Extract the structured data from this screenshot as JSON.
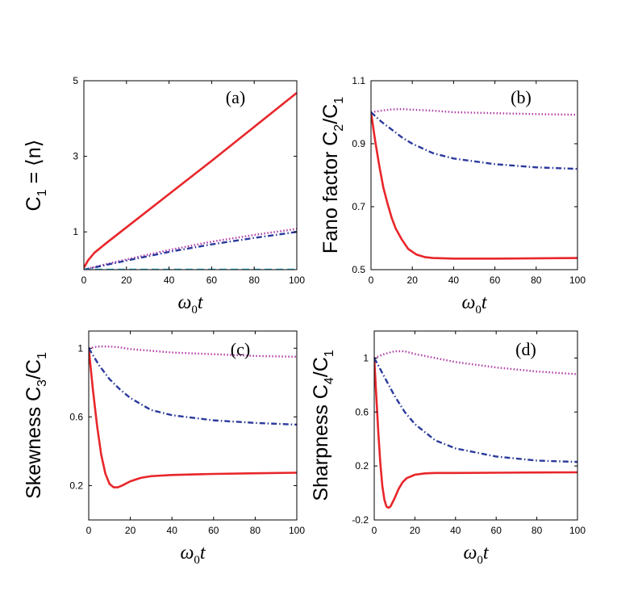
{
  "chart_data": [
    {
      "type": "line",
      "panel_label": "(a)",
      "ylabel_main": "C",
      "ylabel_sub": "1",
      "ylabel_rest": " = ⟨n⟩",
      "xlabel_main": "ω",
      "xlabel_sub": "0",
      "xlabel_rest": "t",
      "xlim": [
        0,
        100
      ],
      "ylim": [
        0,
        5
      ],
      "xticks": [
        "0",
        "20",
        "40",
        "60",
        "80",
        "100"
      ],
      "yticks": [
        "1",
        "3",
        "5"
      ],
      "series": [
        {
          "name": "solid-red",
          "color": "#e8262a",
          "style": "solid",
          "x": [
            0,
            2,
            5,
            10,
            20,
            40,
            60,
            80,
            100
          ],
          "y": [
            0.05,
            0.25,
            0.45,
            0.68,
            1.12,
            2.0,
            2.88,
            3.78,
            4.68
          ]
        },
        {
          "name": "dotted-magenta",
          "color": "#b03aa8",
          "style": "dotted",
          "x": [
            0,
            10,
            20,
            40,
            60,
            80,
            100
          ],
          "y": [
            0.0,
            0.14,
            0.27,
            0.52,
            0.74,
            0.92,
            1.08
          ]
        },
        {
          "name": "dashdot-blue",
          "color": "#2b3a9c",
          "style": "dashdot",
          "x": [
            0,
            10,
            20,
            40,
            60,
            80,
            100
          ],
          "y": [
            0.0,
            0.12,
            0.24,
            0.47,
            0.67,
            0.84,
            1.0
          ]
        },
        {
          "name": "dashed-cyan",
          "color": "#32b6d4",
          "style": "dashed",
          "x": [
            0,
            20,
            40,
            60,
            80,
            100
          ],
          "y": [
            0.0,
            0.0,
            0.0,
            0.0,
            0.0,
            0.0
          ]
        }
      ]
    },
    {
      "type": "line",
      "panel_label": "(b)",
      "ylabel_main": "Fano factor C",
      "ylabel_sub": "2",
      "ylabel_rest": "/C",
      "ylabel_sub2": "1",
      "xlabel_main": "ω",
      "xlabel_sub": "0",
      "xlabel_rest": "t",
      "xlim": [
        0,
        100
      ],
      "ylim": [
        0.5,
        1.1
      ],
      "xticks": [
        "0",
        "20",
        "40",
        "60",
        "80",
        "100"
      ],
      "yticks": [
        "0.5",
        "0.7",
        "0.9",
        "1.1"
      ],
      "series": [
        {
          "name": "solid-red",
          "color": "#e8262a",
          "style": "solid",
          "x": [
            0,
            2,
            4,
            6,
            8,
            10,
            12,
            15,
            18,
            22,
            26,
            30,
            40,
            60,
            80,
            100
          ],
          "y": [
            1.0,
            0.91,
            0.83,
            0.76,
            0.71,
            0.665,
            0.63,
            0.595,
            0.566,
            0.548,
            0.54,
            0.537,
            0.535,
            0.535,
            0.536,
            0.537
          ]
        },
        {
          "name": "dotted-magenta",
          "color": "#b03aa8",
          "style": "dotted",
          "x": [
            0,
            5,
            10,
            15,
            20,
            30,
            40,
            60,
            80,
            100
          ],
          "y": [
            1.0,
            1.005,
            1.009,
            1.01,
            1.008,
            1.005,
            1.0,
            0.997,
            0.994,
            0.992
          ]
        },
        {
          "name": "dashdot-blue",
          "color": "#2b3a9c",
          "style": "dashdot",
          "x": [
            0,
            5,
            10,
            15,
            20,
            30,
            40,
            60,
            80,
            100
          ],
          "y": [
            1.0,
            0.97,
            0.945,
            0.92,
            0.9,
            0.87,
            0.853,
            0.835,
            0.825,
            0.82
          ]
        }
      ]
    },
    {
      "type": "line",
      "panel_label": "(c)",
      "ylabel_main": "Skewness C",
      "ylabel_sub": "3",
      "ylabel_rest": "/C",
      "ylabel_sub2": "1",
      "xlabel_main": "ω",
      "xlabel_sub": "0",
      "xlabel_rest": "t",
      "xlim": [
        0,
        100
      ],
      "ylim": [
        0,
        1.1
      ],
      "xticks": [
        "0",
        "20",
        "40",
        "60",
        "80",
        "100"
      ],
      "yticks": [
        "0.2",
        "0.6",
        "1"
      ],
      "series": [
        {
          "name": "solid-red",
          "color": "#e8262a",
          "style": "solid",
          "x": [
            0,
            2,
            4,
            6,
            8,
            10,
            12,
            14,
            16,
            20,
            25,
            30,
            40,
            60,
            80,
            100
          ],
          "y": [
            1.0,
            0.76,
            0.55,
            0.38,
            0.27,
            0.21,
            0.19,
            0.19,
            0.2,
            0.225,
            0.245,
            0.255,
            0.262,
            0.268,
            0.272,
            0.275
          ]
        },
        {
          "name": "dotted-magenta",
          "color": "#b03aa8",
          "style": "dotted",
          "x": [
            0,
            5,
            10,
            15,
            20,
            30,
            40,
            60,
            80,
            100
          ],
          "y": [
            1.0,
            1.01,
            1.01,
            1.005,
            0.995,
            0.985,
            0.975,
            0.965,
            0.955,
            0.95
          ]
        },
        {
          "name": "dashdot-blue",
          "color": "#2b3a9c",
          "style": "dashdot",
          "x": [
            0,
            5,
            10,
            15,
            20,
            30,
            40,
            60,
            80,
            100
          ],
          "y": [
            1.0,
            0.9,
            0.82,
            0.76,
            0.71,
            0.64,
            0.61,
            0.58,
            0.565,
            0.555
          ]
        }
      ]
    },
    {
      "type": "line",
      "panel_label": "(d)",
      "ylabel_main": "Sharpness C",
      "ylabel_sub": "4",
      "ylabel_rest": "/C",
      "ylabel_sub2": "1",
      "xlabel_main": "ω",
      "xlabel_sub": "0",
      "xlabel_rest": "t",
      "xlim": [
        0,
        100
      ],
      "ylim": [
        -0.2,
        1.2
      ],
      "xticks": [
        "0",
        "20",
        "40",
        "60",
        "80",
        "100"
      ],
      "yticks": [
        "-0.2",
        "0.2",
        "0.6",
        "1"
      ],
      "series": [
        {
          "name": "solid-red",
          "color": "#e8262a",
          "style": "solid",
          "x": [
            0,
            1,
            2,
            3,
            4,
            5,
            6,
            7,
            8,
            10,
            12,
            14,
            16,
            20,
            25,
            30,
            40,
            60,
            80,
            100
          ],
          "y": [
            1.0,
            0.72,
            0.45,
            0.22,
            0.05,
            -0.05,
            -0.1,
            -0.11,
            -0.1,
            -0.04,
            0.03,
            0.08,
            0.11,
            0.135,
            0.145,
            0.148,
            0.148,
            0.15,
            0.152,
            0.153
          ]
        },
        {
          "name": "dotted-magenta",
          "color": "#b03aa8",
          "style": "dotted",
          "x": [
            0,
            5,
            10,
            15,
            20,
            30,
            40,
            60,
            80,
            100
          ],
          "y": [
            1.0,
            1.03,
            1.05,
            1.05,
            1.03,
            1.0,
            0.97,
            0.93,
            0.9,
            0.88
          ]
        },
        {
          "name": "dashdot-blue",
          "color": "#2b3a9c",
          "style": "dashdot",
          "x": [
            0,
            5,
            10,
            15,
            20,
            30,
            40,
            60,
            80,
            100
          ],
          "y": [
            1.0,
            0.86,
            0.72,
            0.6,
            0.51,
            0.39,
            0.33,
            0.27,
            0.24,
            0.23
          ]
        }
      ]
    }
  ]
}
